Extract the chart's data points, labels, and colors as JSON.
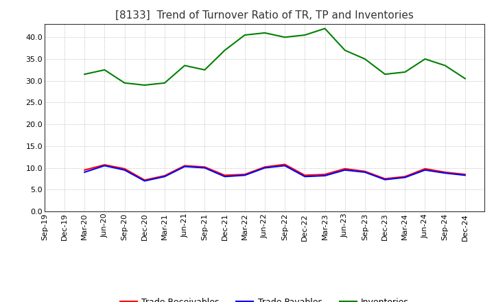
{
  "title": "[8133]  Trend of Turnover Ratio of TR, TP and Inventories",
  "x_labels": [
    "Sep-19",
    "Dec-19",
    "Mar-20",
    "Jun-20",
    "Sep-20",
    "Dec-20",
    "Mar-21",
    "Jun-21",
    "Sep-21",
    "Dec-21",
    "Mar-22",
    "Jun-22",
    "Sep-22",
    "Dec-22",
    "Mar-23",
    "Jun-23",
    "Sep-23",
    "Dec-23",
    "Mar-24",
    "Jun-24",
    "Sep-24",
    "Dec-24"
  ],
  "trade_receivables": [
    null,
    null,
    9.5,
    10.7,
    9.8,
    7.2,
    8.2,
    10.5,
    10.2,
    8.3,
    8.5,
    10.2,
    10.8,
    8.3,
    8.5,
    9.8,
    9.2,
    7.5,
    8.0,
    9.8,
    9.0,
    8.5
  ],
  "trade_payables": [
    null,
    null,
    9.0,
    10.5,
    9.5,
    7.0,
    8.0,
    10.3,
    10.0,
    8.0,
    8.3,
    10.0,
    10.5,
    8.0,
    8.2,
    9.5,
    9.0,
    7.3,
    7.8,
    9.5,
    8.8,
    8.3
  ],
  "inventories": [
    null,
    null,
    31.5,
    32.5,
    29.5,
    29.0,
    29.5,
    33.5,
    32.5,
    37.0,
    40.5,
    41.0,
    40.0,
    40.5,
    42.0,
    37.0,
    35.0,
    31.5,
    32.0,
    35.0,
    33.5,
    30.5
  ],
  "tr_color": "#FF0000",
  "tp_color": "#0000FF",
  "inv_color": "#008000",
  "background_color": "#FFFFFF",
  "grid_color": "#AAAAAA",
  "ylim": [
    0.0,
    43.0
  ],
  "yticks": [
    0.0,
    5.0,
    10.0,
    15.0,
    20.0,
    25.0,
    30.0,
    35.0,
    40.0
  ],
  "title_fontsize": 11,
  "legend_fontsize": 9,
  "tick_fontsize": 8,
  "linewidth": 1.5
}
